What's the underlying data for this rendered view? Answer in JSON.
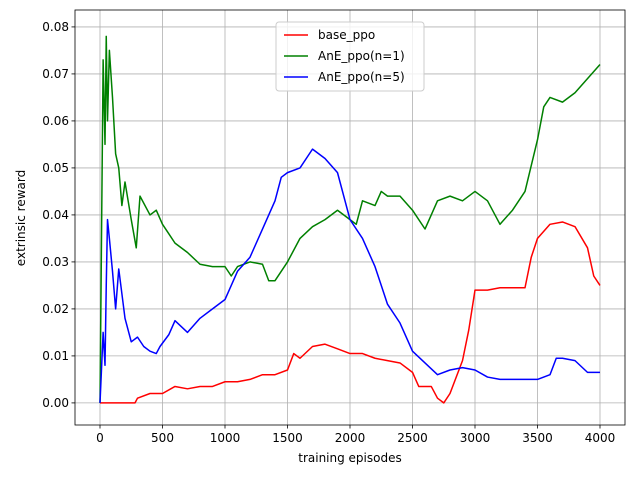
{
  "chart_data": {
    "type": "line",
    "xlabel": "training episodes",
    "ylabel": "extrinsic reward",
    "xlim": [
      -200,
      4200
    ],
    "ylim": [
      -0.0047,
      0.0836
    ],
    "xticks": [
      0,
      500,
      1000,
      1500,
      2000,
      2500,
      3000,
      3500,
      4000
    ],
    "yticks": [
      {
        "value": 0,
        "label": "0.00"
      },
      {
        "value": 0.01,
        "label": "0.01"
      },
      {
        "value": 0.02,
        "label": "0.02"
      },
      {
        "value": 0.03,
        "label": "0.03"
      },
      {
        "value": 0.04,
        "label": "0.04"
      },
      {
        "value": 0.05,
        "label": "0.05"
      },
      {
        "value": 0.06,
        "label": "0.06"
      },
      {
        "value": 0.07,
        "label": "0.07"
      },
      {
        "value": 0.08,
        "label": "0.08"
      }
    ],
    "grid": true,
    "legend": "upper center",
    "series": [
      {
        "name": "base_ppo",
        "color": "#ff0000",
        "x": [
          0,
          280,
          300,
          400,
          500,
          600,
          700,
          800,
          900,
          1000,
          1100,
          1200,
          1300,
          1400,
          1500,
          1550,
          1600,
          1700,
          1800,
          1900,
          2000,
          2100,
          2200,
          2300,
          2400,
          2500,
          2550,
          2650,
          2700,
          2750,
          2800,
          2900,
          2950,
          3000,
          3100,
          3200,
          3300,
          3400,
          3450,
          3500,
          3600,
          3700,
          3800,
          3900,
          3950,
          4000
        ],
        "values": [
          0,
          0,
          0.001,
          0.002,
          0.002,
          0.0035,
          0.003,
          0.0035,
          0.0035,
          0.0045,
          0.0045,
          0.005,
          0.006,
          0.006,
          0.007,
          0.0105,
          0.0095,
          0.012,
          0.0125,
          0.0115,
          0.0105,
          0.0105,
          0.0095,
          0.009,
          0.0085,
          0.0065,
          0.0035,
          0.0035,
          0.001,
          0,
          0.002,
          0.009,
          0.0155,
          0.024,
          0.024,
          0.0245,
          0.0245,
          0.0245,
          0.031,
          0.035,
          0.038,
          0.0385,
          0.0375,
          0.033,
          0.027,
          0.025
        ]
      },
      {
        "name": "AnE_ppo(n=1)",
        "color": "#008000",
        "x": [
          0,
          25,
          40,
          50,
          60,
          75,
          100,
          125,
          150,
          175,
          200,
          250,
          290,
          320,
          400,
          450,
          500,
          550,
          600,
          700,
          800,
          900,
          1000,
          1050,
          1100,
          1200,
          1300,
          1350,
          1400,
          1500,
          1600,
          1700,
          1800,
          1900,
          2000,
          2050,
          2100,
          2200,
          2250,
          2300,
          2400,
          2500,
          2600,
          2700,
          2800,
          2900,
          3000,
          3100,
          3200,
          3300,
          3400,
          3500,
          3550,
          3600,
          3700,
          3800,
          3900,
          4000
        ],
        "values": [
          0,
          0.073,
          0.055,
          0.078,
          0.06,
          0.075,
          0.065,
          0.053,
          0.05,
          0.042,
          0.047,
          0.039,
          0.033,
          0.044,
          0.04,
          0.041,
          0.038,
          0.036,
          0.034,
          0.032,
          0.0295,
          0.029,
          0.029,
          0.027,
          0.029,
          0.03,
          0.0295,
          0.026,
          0.026,
          0.03,
          0.035,
          0.0375,
          0.039,
          0.041,
          0.039,
          0.038,
          0.043,
          0.042,
          0.045,
          0.044,
          0.044,
          0.041,
          0.037,
          0.043,
          0.044,
          0.043,
          0.045,
          0.043,
          0.038,
          0.041,
          0.045,
          0.056,
          0.063,
          0.065,
          0.064,
          0.066,
          0.069,
          0.072
        ]
      },
      {
        "name": "AnE_ppo(n=5)",
        "color": "#0000ff",
        "x": [
          0,
          25,
          40,
          50,
          60,
          75,
          100,
          125,
          150,
          200,
          250,
          300,
          350,
          400,
          450,
          480,
          550,
          600,
          700,
          800,
          900,
          1000,
          1050,
          1100,
          1200,
          1300,
          1400,
          1450,
          1500,
          1600,
          1700,
          1800,
          1900,
          2000,
          2100,
          2200,
          2300,
          2400,
          2500,
          2600,
          2700,
          2800,
          2900,
          3000,
          3100,
          3200,
          3300,
          3400,
          3500,
          3600,
          3650,
          3700,
          3800,
          3900,
          4000
        ],
        "values": [
          0,
          0.015,
          0.008,
          0.025,
          0.039,
          0.035,
          0.028,
          0.02,
          0.0285,
          0.018,
          0.013,
          0.014,
          0.012,
          0.011,
          0.0105,
          0.012,
          0.0145,
          0.0175,
          0.015,
          0.018,
          0.02,
          0.022,
          0.025,
          0.028,
          0.031,
          0.037,
          0.043,
          0.048,
          0.049,
          0.05,
          0.054,
          0.052,
          0.049,
          0.039,
          0.035,
          0.029,
          0.021,
          0.017,
          0.011,
          0.0085,
          0.006,
          0.007,
          0.0075,
          0.007,
          0.0055,
          0.005,
          0.005,
          0.005,
          0.005,
          0.006,
          0.0095,
          0.0095,
          0.009,
          0.0065,
          0.0065
        ]
      }
    ]
  }
}
